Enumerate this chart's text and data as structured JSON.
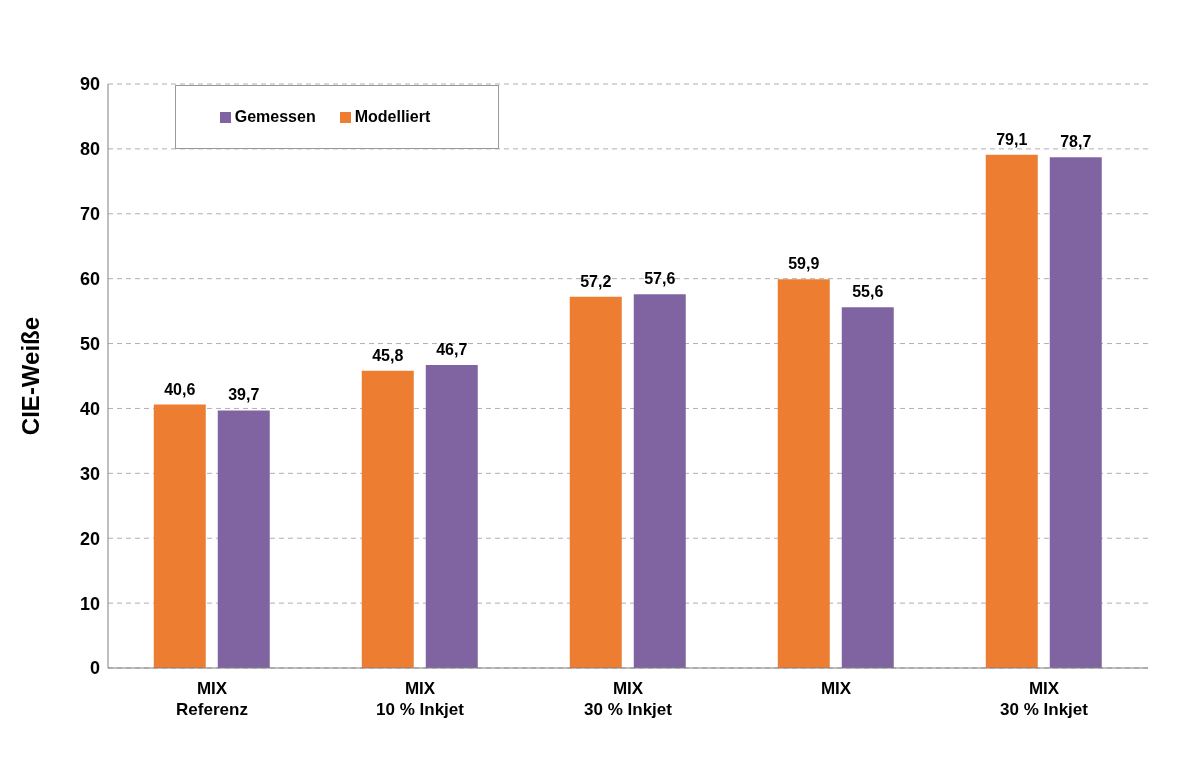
{
  "chart_data": {
    "type": "bar",
    "ylabel": "CIE-Weiße",
    "categories": [
      "MIX\nReferenz",
      "MIX\n10 % Inkjet",
      "MIX\n30 % Inkjet",
      "MIX",
      "MIX\n30 % Inkjet"
    ],
    "series": [
      {
        "name": "Modelliert",
        "color": "#ed7d31",
        "values": [
          40.6,
          45.8,
          57.2,
          59.9,
          79.1
        ],
        "value_labels": [
          "40,6",
          "45,8",
          "57,2",
          "59,9",
          "79,1"
        ]
      },
      {
        "name": "Gemessen",
        "color": "#8064a2",
        "values": [
          39.7,
          46.7,
          57.6,
          55.6,
          78.7
        ],
        "value_labels": [
          "39,7",
          "46,7",
          "57,6",
          "55,6",
          "78,7"
        ]
      }
    ],
    "ylim": [
      0,
      90
    ],
    "yticks": [
      0,
      10,
      20,
      30,
      40,
      50,
      60,
      70,
      80,
      90
    ],
    "grid": "y",
    "legend": "top left"
  }
}
